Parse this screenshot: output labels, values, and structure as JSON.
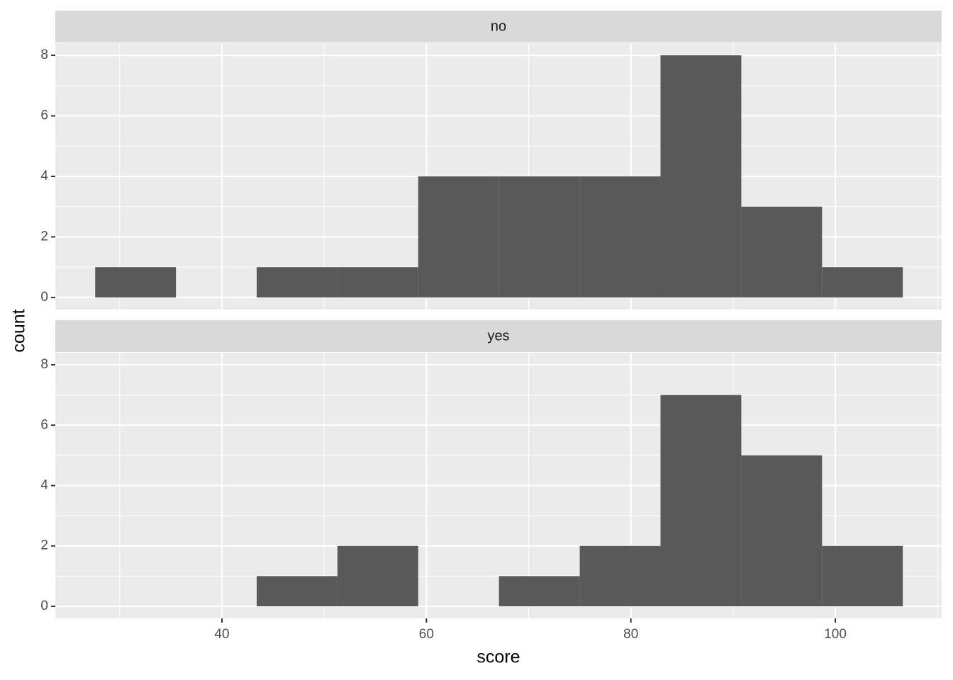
{
  "chart_data": {
    "type": "histogram",
    "x_label": "score",
    "y_label": "count",
    "xlim": [
      23.7,
      110.4
    ],
    "ylim": [
      -0.4,
      8.4
    ],
    "xticks": [
      40,
      60,
      80,
      100
    ],
    "yticks": [
      0,
      2,
      4,
      6,
      8
    ],
    "grid": true,
    "color": "#595959",
    "bins": [
      27.6,
      35.5,
      43.4,
      51.3,
      59.2,
      67.1,
      75.0,
      82.9,
      90.8,
      98.7,
      106.6
    ],
    "panels": [
      {
        "title": "no",
        "values": [
          1,
          0,
          1,
          1,
          4,
          4,
          4,
          8,
          3,
          1
        ]
      },
      {
        "title": "yes",
        "values": [
          0,
          0,
          1,
          2,
          0,
          1,
          2,
          7,
          5,
          2
        ]
      }
    ]
  }
}
